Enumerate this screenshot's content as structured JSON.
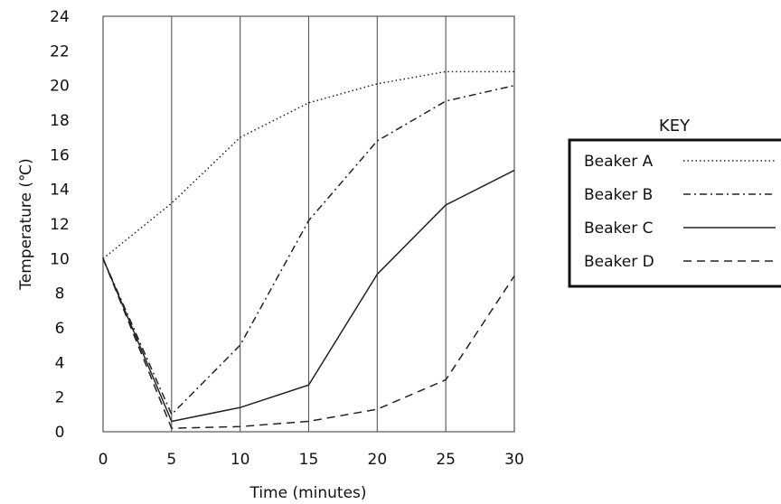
{
  "chart_data": {
    "type": "line",
    "xlabel": "Time (minutes)",
    "ylabel": "Temperature (℃)",
    "x": [
      0,
      5,
      10,
      15,
      20,
      25,
      30
    ],
    "xlim": [
      0,
      30
    ],
    "ylim": [
      0,
      24
    ],
    "x_ticks": [
      "0",
      "5",
      "10",
      "15",
      "20",
      "25",
      "30"
    ],
    "y_ticks": [
      "0",
      "2",
      "4",
      "6",
      "8",
      "10",
      "12",
      "14",
      "16",
      "18",
      "20",
      "22",
      "24"
    ],
    "grid": "vertical",
    "legend": {
      "title": "KEY",
      "placement": "right"
    },
    "series": [
      {
        "name": "Beaker A",
        "style": "dotted",
        "values": [
          10,
          13.2,
          17,
          19,
          20.1,
          20.8,
          20.8
        ]
      },
      {
        "name": "Beaker B",
        "style": "dash-dot",
        "values": [
          10,
          1,
          5,
          12.2,
          16.8,
          19.1,
          20
        ]
      },
      {
        "name": "Beaker C",
        "style": "solid",
        "values": [
          10,
          0.6,
          1.4,
          2.7,
          9.1,
          13.1,
          15.1
        ]
      },
      {
        "name": "Beaker D",
        "style": "dashed",
        "values": [
          10,
          0.2,
          0.3,
          0.6,
          1.3,
          3,
          9
        ]
      }
    ],
    "colors": {
      "line": "#222222",
      "grid": "#555555"
    }
  }
}
